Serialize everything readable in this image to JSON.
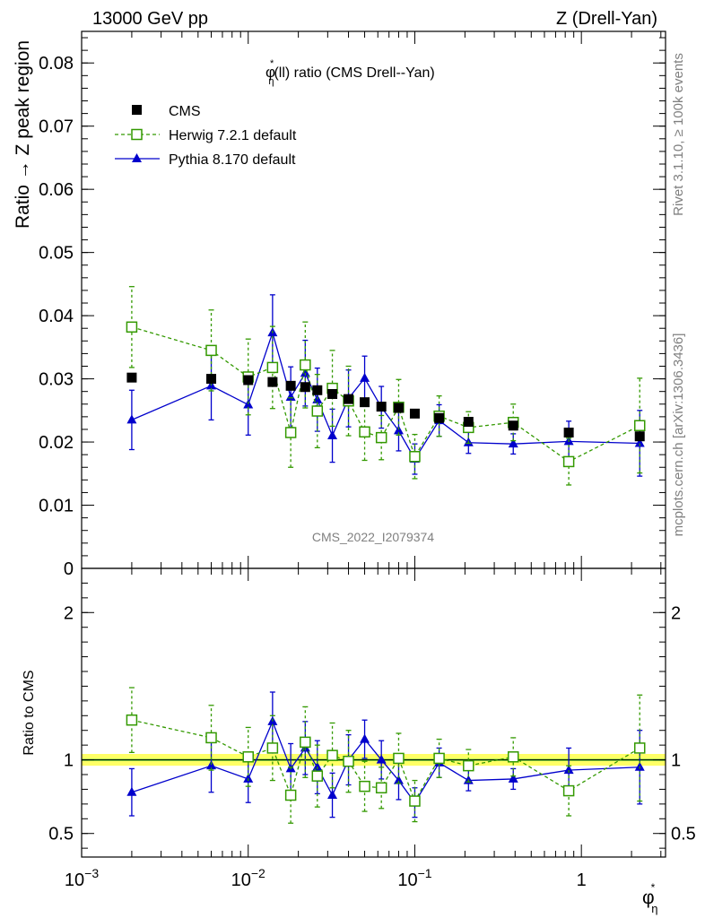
{
  "header": {
    "left": "13000 GeV pp",
    "right": "Z (Drell-Yan)"
  },
  "side_text": {
    "rivet": "Rivet 3.1.10, ≥ 100k events",
    "mcplots": "mcplots.cern.ch [arXiv:1306.3436]"
  },
  "chart_data": {
    "type": "scatter",
    "title": "φ*η(ll) ratio (CMS Drell--Yan)",
    "title_parts": {
      "phi": "φ",
      "star": "*",
      "eta": "η",
      "rest": "(ll) ratio (CMS Drell--Yan)"
    },
    "watermark": "CMS_2022_I2079374",
    "xscale": "log",
    "xlim": [
      0.001,
      3.2
    ],
    "xlabel": {
      "phi": "φ",
      "star": "*",
      "eta": "η"
    },
    "x_ticks": [
      {
        "value": 0.001,
        "base": "10",
        "exp": "−3"
      },
      {
        "value": 0.01,
        "base": "10",
        "exp": "−2"
      },
      {
        "value": 0.1,
        "base": "10",
        "exp": "−1"
      },
      {
        "value": 1,
        "base": "1",
        "exp": ""
      }
    ],
    "main": {
      "ylabel": "Ratio → Z peak region",
      "ylim": [
        0,
        0.085
      ],
      "y_ticks": [
        {
          "value": 0,
          "label": "0"
        },
        {
          "value": 0.01,
          "label": "0.01"
        },
        {
          "value": 0.02,
          "label": "0.02"
        },
        {
          "value": 0.03,
          "label": "0.03"
        },
        {
          "value": 0.04,
          "label": "0.04"
        },
        {
          "value": 0.05,
          "label": "0.05"
        },
        {
          "value": 0.06,
          "label": "0.06"
        },
        {
          "value": 0.07,
          "label": "0.07"
        },
        {
          "value": 0.08,
          "label": "0.08"
        }
      ]
    },
    "ratio": {
      "ylabel": "Ratio to CMS",
      "ylim": [
        0.34,
        2.3
      ],
      "y_ticks": [
        {
          "value": 0.5,
          "label": "0.5"
        },
        {
          "value": 1,
          "label": "1"
        },
        {
          "value": 2,
          "label": "2"
        }
      ]
    },
    "legend_position": "top-left",
    "series": [
      {
        "name": "CMS",
        "color": "#000000",
        "marker": "square-filled",
        "x": [
          0.002,
          0.006,
          0.01,
          0.014,
          0.018,
          0.022,
          0.026,
          0.032,
          0.04,
          0.05,
          0.063,
          0.08,
          0.1,
          0.14,
          0.21,
          0.39,
          0.84,
          2.24
        ],
        "y": [
          0.0302,
          0.03,
          0.0298,
          0.0295,
          0.0289,
          0.0287,
          0.0282,
          0.0276,
          0.0268,
          0.0263,
          0.0256,
          0.0254,
          0.0245,
          0.0238,
          0.0232,
          0.0226,
          0.0215,
          0.0209
        ],
        "yerr": [
          0,
          0,
          0,
          0,
          0,
          0,
          0,
          0,
          0,
          0,
          0,
          0,
          0,
          0,
          0,
          0,
          0,
          0
        ]
      },
      {
        "name": "Herwig 7.2.1 default",
        "color": "#339900",
        "marker": "square-open",
        "linestyle": "dashed",
        "x": [
          0.002,
          0.006,
          0.01,
          0.014,
          0.018,
          0.022,
          0.026,
          0.032,
          0.04,
          0.05,
          0.063,
          0.08,
          0.1,
          0.14,
          0.21,
          0.39,
          0.84,
          2.24
        ],
        "y": [
          0.0382,
          0.0345,
          0.0303,
          0.0318,
          0.0215,
          0.0322,
          0.0249,
          0.0285,
          0.0265,
          0.0216,
          0.0207,
          0.0255,
          0.0177,
          0.0241,
          0.0223,
          0.0231,
          0.0169,
          0.0226
        ],
        "yerr": [
          0.0064,
          0.0064,
          0.006,
          0.0065,
          0.0055,
          0.0068,
          0.0058,
          0.006,
          0.0055,
          0.0045,
          0.0035,
          0.0044,
          0.0035,
          0.0032,
          0.0025,
          0.0029,
          0.0037,
          0.0075
        ]
      },
      {
        "name": "Pythia 8.170 default",
        "color": "#0000cc",
        "marker": "triangle-filled",
        "linestyle": "solid",
        "x": [
          0.002,
          0.006,
          0.01,
          0.014,
          0.018,
          0.022,
          0.026,
          0.032,
          0.04,
          0.05,
          0.063,
          0.08,
          0.1,
          0.14,
          0.21,
          0.39,
          0.84,
          2.24
        ],
        "y": [
          0.0235,
          0.0289,
          0.0259,
          0.0373,
          0.0271,
          0.0309,
          0.0267,
          0.021,
          0.0269,
          0.0301,
          0.0255,
          0.0218,
          0.0173,
          0.0234,
          0.0199,
          0.0197,
          0.0201,
          0.0198
        ],
        "yerr": [
          0.0047,
          0.0054,
          0.0048,
          0.006,
          0.0048,
          0.0052,
          0.005,
          0.0042,
          0.0045,
          0.0035,
          0.0033,
          0.0032,
          0.0024,
          0.0025,
          0.0017,
          0.0016,
          0.0032,
          0.0052
        ]
      }
    ],
    "ratio_series": [
      {
        "name": "Herwig 7.2.1 default",
        "color": "#339900",
        "x": [
          0.002,
          0.006,
          0.01,
          0.014,
          0.018,
          0.022,
          0.026,
          0.032,
          0.04,
          0.05,
          0.063,
          0.08,
          0.1,
          0.14,
          0.21,
          0.39,
          0.84,
          2.24
        ],
        "y": [
          1.27,
          1.15,
          1.02,
          1.08,
          0.76,
          1.12,
          0.89,
          1.03,
          0.99,
          0.82,
          0.81,
          1.01,
          0.72,
          1.01,
          0.96,
          1.02,
          0.79,
          1.08
        ],
        "yerr": [
          0.22,
          0.22,
          0.2,
          0.22,
          0.19,
          0.24,
          0.21,
          0.22,
          0.21,
          0.17,
          0.14,
          0.17,
          0.14,
          0.13,
          0.11,
          0.13,
          0.17,
          0.36
        ]
      },
      {
        "name": "Pythia 8.170 default",
        "color": "#0000cc",
        "x": [
          0.002,
          0.006,
          0.01,
          0.014,
          0.018,
          0.022,
          0.026,
          0.032,
          0.04,
          0.05,
          0.063,
          0.08,
          0.1,
          0.14,
          0.21,
          0.39,
          0.84,
          2.24
        ],
        "y": [
          0.78,
          0.96,
          0.87,
          1.26,
          0.94,
          1.08,
          0.95,
          0.76,
          1.0,
          1.14,
          1.0,
          0.86,
          0.71,
          0.98,
          0.86,
          0.87,
          0.93,
          0.95
        ],
        "yerr": [
          0.16,
          0.18,
          0.16,
          0.2,
          0.17,
          0.18,
          0.18,
          0.15,
          0.17,
          0.13,
          0.13,
          0.13,
          0.1,
          0.1,
          0.07,
          0.07,
          0.15,
          0.25
        ]
      }
    ],
    "ratio_band": {
      "center": 1.0,
      "halfwidth": 0.04,
      "color": "#ffff66",
      "line_color": "#33cc33"
    }
  }
}
